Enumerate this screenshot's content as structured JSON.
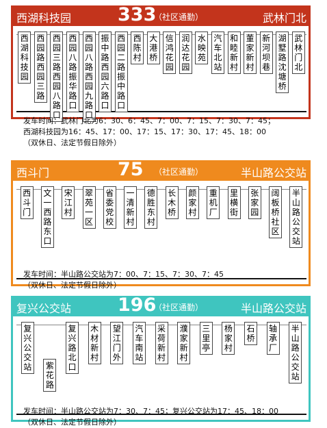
{
  "routes": [
    {
      "start": "西湖科技园",
      "number": "333",
      "tag": "（社区通勤）",
      "end": "武林门北",
      "color": "#c3341c",
      "stops": [
        "西湖科技园",
        "西园路西园三路",
        "西园三路西园八路口",
        "西园八路振华路口",
        "西园八路西园九路口",
        "振中路西园六路口",
        "西园二路振中路口",
        "西陈村",
        "大港桥",
        "信鸿花园",
        "润达花园",
        "水映苑",
        "汽车北站",
        "和睦新村",
        "董家新村",
        "新河坝巷",
        "湖墅路沈塘桥",
        "武林门北"
      ],
      "departures": [
        "发车时间：武林门北为6：30、6：45、7：00、7：15、7：30、7：45；",
        "西湖科技园为16：45、17：00、17：15、17：30、17：45、18：00",
        "（双休日、法定节假日除外）"
      ]
    },
    {
      "start": "西斗门",
      "number": "75",
      "tag": "（社区通勤）",
      "end": "半山路公交站",
      "color": "#ef8a1e",
      "stops": [
        "西斗门",
        "文一西路东口",
        "宋江村",
        "翠苑一区",
        "省委党校",
        "一清新村",
        "德胜东村",
        "长木桥",
        "颜家村",
        "重机厂",
        "里横街",
        "张家园",
        "阔板桥社区",
        "半山路公交站"
      ],
      "departures": [
        "发车时间：半山路公交站为7：00、7：15、7：30、7：45",
        "（双休日、法定节假日除外）"
      ]
    },
    {
      "start": "复兴公交站",
      "number": "196",
      "tag": "（社区通勤）",
      "end": "半山路公交站",
      "color": "#3fc5bf",
      "stops": [
        "复兴公交站",
        "紫花路",
        "复兴路北口",
        "木材新村",
        "望江门外",
        "汽车南站",
        "采荷新村",
        "濮家新村",
        "三里亭",
        "杨家村",
        "石桥",
        "轴承厂",
        "半山路公交站"
      ],
      "departures": [
        "发车时间：半山路公交站为7：30、7：45；复兴公交站为17：45、18：00",
        "（双休日、法定节假日除外）"
      ]
    }
  ]
}
